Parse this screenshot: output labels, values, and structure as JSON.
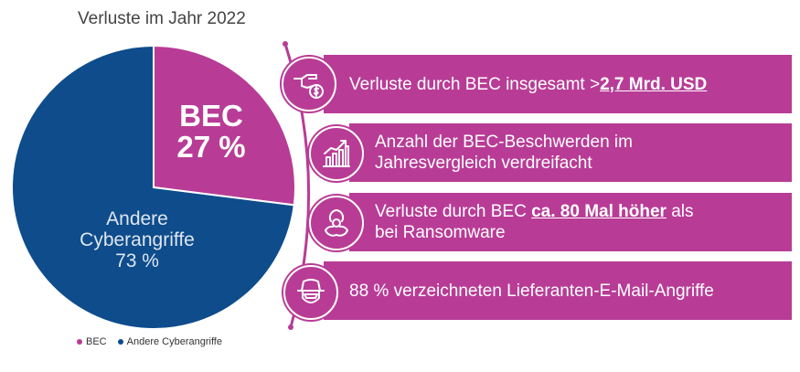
{
  "chart_data": {
    "type": "pie",
    "title": "Verluste im Jahr 2022",
    "slices": [
      {
        "name": "BEC",
        "value": 27,
        "label_top": "BEC",
        "label_bottom": "27 %",
        "color": "#b83c96"
      },
      {
        "name": "Andere Cyberangriffe",
        "value": 73,
        "label_line1": "Andere",
        "label_line2": "Cyberangriffe",
        "label_line3": "73 %",
        "color": "#0e4c8c"
      }
    ],
    "legend": {
      "placement": "bottom-left",
      "items": [
        "BEC",
        "Andere Cyberangriffe"
      ]
    }
  },
  "facts": [
    {
      "icon": "hand-money-icon",
      "pre": "Verluste durch BEC insgesamt >",
      "strong": "2,7 Mrd. USD",
      "post": ""
    },
    {
      "icon": "growth-chart-icon",
      "line1": "Anzahl der BEC-Beschwerden im",
      "line2": "Jahresvergleich verdreifacht"
    },
    {
      "icon": "biohazard-icon",
      "pre": "Verluste durch BEC ",
      "strong": "ca. 80 Mal höher",
      "post": " als",
      "line2": "bei Ransomware"
    },
    {
      "icon": "hacker-icon",
      "text": "88 % verzeichneten Lieferanten-E-Mail-Angriffe"
    }
  ],
  "colors": {
    "accent": "#b83c96",
    "navy": "#0e4c8c"
  }
}
